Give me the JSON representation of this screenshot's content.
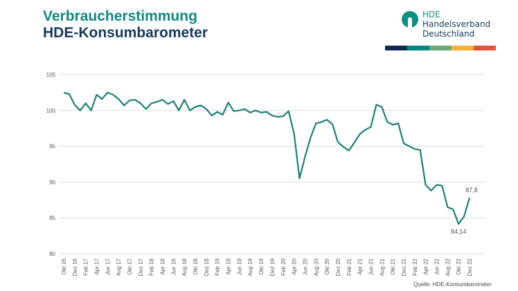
{
  "header": {
    "title_line1": "Verbraucherstimmung",
    "title_line2": "HDE-Konsumbarometer"
  },
  "logo": {
    "short": "HDE",
    "line1": "Handelsverband",
    "line2": "Deutschland",
    "bar_colors": [
      "#0d2a52",
      "#00877f",
      "#6aab78",
      "#f5b335",
      "#e5533d"
    ]
  },
  "source": "Quelle: HDE-Konsumbarometer",
  "chart_data": {
    "type": "line",
    "title": "",
    "xlabel": "",
    "ylabel": "",
    "ylim": [
      80,
      105
    ],
    "yticks": [
      80,
      85,
      90,
      95,
      100,
      105
    ],
    "grid": "horizontal",
    "line_color": "#1a7f7a",
    "x_tick_labels": [
      "Okt 16",
      "Dez 16",
      "Feb 17",
      "Apr 17",
      "Jun 17",
      "Aug 17",
      "Okt 17",
      "Dez 17",
      "Feb 18",
      "Apr 18",
      "Jun 18",
      "Aug 18",
      "Okt 18",
      "Dez 18",
      "Feb 19",
      "Apr 19",
      "Jun 19",
      "Aug 19",
      "Okt 19",
      "Dez 19",
      "Feb 20",
      "Apr 20",
      "Jun 20",
      "Aug 20",
      "Okt 20",
      "Dez 20",
      "Feb 21",
      "Apr 21",
      "Jun 21",
      "Aug 21",
      "Okt 21",
      "Dez 21",
      "Feb 22",
      "Apr 22",
      "Jun 22",
      "Aug 22",
      "Okt 22",
      "Dez 22"
    ],
    "values": [
      102.5,
      102.3,
      100.8,
      100.0,
      101.0,
      100.0,
      102.2,
      101.6,
      102.5,
      102.2,
      101.6,
      100.7,
      101.4,
      101.5,
      101.0,
      100.2,
      101.0,
      101.2,
      101.5,
      100.9,
      101.3,
      100.0,
      101.5,
      100.0,
      100.5,
      100.7,
      100.2,
      99.3,
      99.8,
      99.4,
      101.1,
      99.9,
      100.0,
      100.2,
      99.7,
      100.0,
      99.7,
      99.8,
      99.3,
      99.1,
      99.2,
      99.9,
      96.8,
      90.5,
      93.5,
      96.2,
      98.2,
      98.4,
      98.7,
      98.1,
      95.6,
      94.9,
      94.4,
      95.5,
      96.7,
      97.3,
      97.7,
      100.8,
      100.5,
      98.4,
      98.0,
      98.2,
      95.4,
      95.0,
      94.6,
      94.5,
      89.6,
      88.8,
      89.6,
      89.5,
      86.5,
      86.2,
      84.14,
      85.2,
      87.8
    ],
    "annotations": [
      {
        "index": 72,
        "label": "84,14"
      },
      {
        "index": 74,
        "label": "87,8"
      }
    ]
  }
}
